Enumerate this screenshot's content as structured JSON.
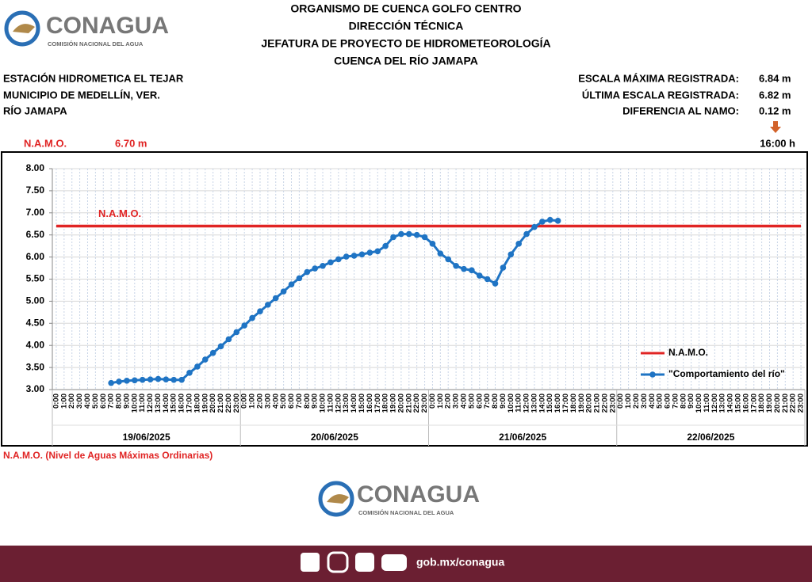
{
  "header": {
    "logo": {
      "name": "CONAGUA",
      "subtitle": "COMISIÓN NACIONAL DEL AGUA"
    },
    "lines": [
      "ORGANISMO DE CUENCA GOLFO CENTRO",
      "DIRECCIÓN TÉCNICA",
      "JEFATURA DE PROYECTO DE HIDROMETEOROLOGÍA",
      "CUENCA DEL RÍO JAMAPA"
    ]
  },
  "station": [
    "ESTACIÓN HIDROMETICA EL TEJAR",
    "MUNICIPIO DE MEDELLÍN, VER.",
    "RÍO JAMAPA"
  ],
  "readings": [
    {
      "label": "ESCALA MÁXIMA REGISTRADA:",
      "value": "6.84 m"
    },
    {
      "label": "ÚLTIMA ESCALA REGISTRADA:",
      "value": "6.82 m"
    },
    {
      "label": "DIFERENCIA AL NAMO:",
      "value": "0.12 m"
    }
  ],
  "namo": {
    "label": "N.A.M.O.",
    "value": "6.70 m",
    "time": "16:00 h"
  },
  "chart_data": {
    "type": "line",
    "categories": [
      "0:00",
      "1:00",
      "2:00",
      "3:00",
      "4:00",
      "5:00",
      "6:00",
      "7:00",
      "8:00",
      "9:00",
      "10:00",
      "11:00",
      "12:00",
      "13:00",
      "14:00",
      "15:00",
      "16:00",
      "17:00",
      "18:00",
      "19:00",
      "20:00",
      "21:00",
      "22:00",
      "23:00",
      "0:00",
      "1:00",
      "2:00",
      "3:00",
      "4:00",
      "5:00",
      "6:00",
      "7:00",
      "8:00",
      "9:00",
      "10:00",
      "11:00",
      "12:00",
      "13:00",
      "14:00",
      "15:00",
      "16:00",
      "17:00",
      "18:00",
      "19:00",
      "20:00",
      "21:00",
      "22:00",
      "23:00",
      "0:00",
      "1:00",
      "2:00",
      "3:00",
      "4:00",
      "5:00",
      "6:00",
      "7:00",
      "8:00",
      "9:00",
      "10:00",
      "11:00",
      "12:00",
      "13:00",
      "14:00",
      "15:00",
      "16:00",
      "17:00",
      "18:00",
      "19:00",
      "20:00",
      "21:00",
      "22:00",
      "23:00",
      "0:00",
      "1:00",
      "2:00",
      "3:00",
      "4:00",
      "5:00",
      "6:00",
      "7:00",
      "8:00",
      "9:00",
      "10:00",
      "11:00",
      "12:00",
      "13:00",
      "14:00",
      "15:00",
      "16:00",
      "17:00",
      "18:00",
      "19:00",
      "20:00",
      "21:00",
      "22:00",
      "23:00"
    ],
    "groups": [
      "19/06/2025",
      "20/06/2025",
      "21/06/2025",
      "22/06/2025"
    ],
    "series": [
      {
        "name": "N.A.M.O.",
        "color": "#e02424",
        "values": [
          6.7,
          6.7,
          6.7,
          6.7,
          6.7,
          6.7,
          6.7,
          6.7,
          6.7,
          6.7,
          6.7,
          6.7,
          6.7,
          6.7,
          6.7,
          6.7,
          6.7,
          6.7,
          6.7,
          6.7,
          6.7,
          6.7,
          6.7,
          6.7,
          6.7,
          6.7,
          6.7,
          6.7,
          6.7,
          6.7,
          6.7,
          6.7,
          6.7,
          6.7,
          6.7,
          6.7,
          6.7,
          6.7,
          6.7,
          6.7,
          6.7,
          6.7,
          6.7,
          6.7,
          6.7,
          6.7,
          6.7,
          6.7,
          6.7,
          6.7,
          6.7,
          6.7,
          6.7,
          6.7,
          6.7,
          6.7,
          6.7,
          6.7,
          6.7,
          6.7,
          6.7,
          6.7,
          6.7,
          6.7,
          6.7,
          6.7,
          6.7,
          6.7,
          6.7,
          6.7,
          6.7,
          6.7,
          6.7,
          6.7,
          6.7,
          6.7,
          6.7,
          6.7,
          6.7,
          6.7,
          6.7,
          6.7,
          6.7,
          6.7,
          6.7,
          6.7,
          6.7,
          6.7,
          6.7,
          6.7,
          6.7,
          6.7,
          6.7,
          6.7,
          6.7,
          6.7
        ]
      },
      {
        "name": "\"Comportamiento del río\"",
        "color": "#1f74c4",
        "values": [
          null,
          null,
          null,
          null,
          null,
          null,
          null,
          3.15,
          3.18,
          3.2,
          3.21,
          3.22,
          3.23,
          3.24,
          3.23,
          3.22,
          3.22,
          3.38,
          3.52,
          3.68,
          3.83,
          3.98,
          4.14,
          4.3,
          4.45,
          4.62,
          4.77,
          4.92,
          5.07,
          5.22,
          5.38,
          5.52,
          5.66,
          5.74,
          5.8,
          5.88,
          5.95,
          6.01,
          6.03,
          6.06,
          6.1,
          6.13,
          6.25,
          6.45,
          6.52,
          6.52,
          6.5,
          6.45,
          6.3,
          6.08,
          5.95,
          5.8,
          5.73,
          5.7,
          5.58,
          5.5,
          5.4,
          5.76,
          6.06,
          6.3,
          6.52,
          6.68,
          6.8,
          6.84,
          6.82,
          null,
          null,
          null,
          null,
          null,
          null,
          null,
          null,
          null,
          null,
          null,
          null,
          null,
          null,
          null,
          null,
          null,
          null,
          null,
          null,
          null,
          null,
          null,
          null,
          null,
          null,
          null,
          null,
          null,
          null,
          null
        ]
      }
    ],
    "annotation": "N.A.M.O.",
    "ylim": [
      3,
      8
    ],
    "yticks": [
      {
        "value": 3,
        "label": "3.00"
      },
      {
        "value": 3.5,
        "label": "3.50"
      },
      {
        "value": 4,
        "label": "4.00"
      },
      {
        "value": 4.5,
        "label": "4.50"
      },
      {
        "value": 5,
        "label": "5.00"
      },
      {
        "value": 5.5,
        "label": "5.50"
      },
      {
        "value": 6,
        "label": "6.00"
      },
      {
        "value": 6.5,
        "label": "6.50"
      },
      {
        "value": 7,
        "label": "7.00"
      },
      {
        "value": 7.5,
        "label": "7.50"
      },
      {
        "value": 8,
        "label": "8.00"
      }
    ],
    "grid": true,
    "legend": "lower right"
  },
  "note": "N.A.M.O. (Nivel de Aguas Máximas Ordinarias)",
  "footer": {
    "link": "gob.mx/conagua"
  }
}
